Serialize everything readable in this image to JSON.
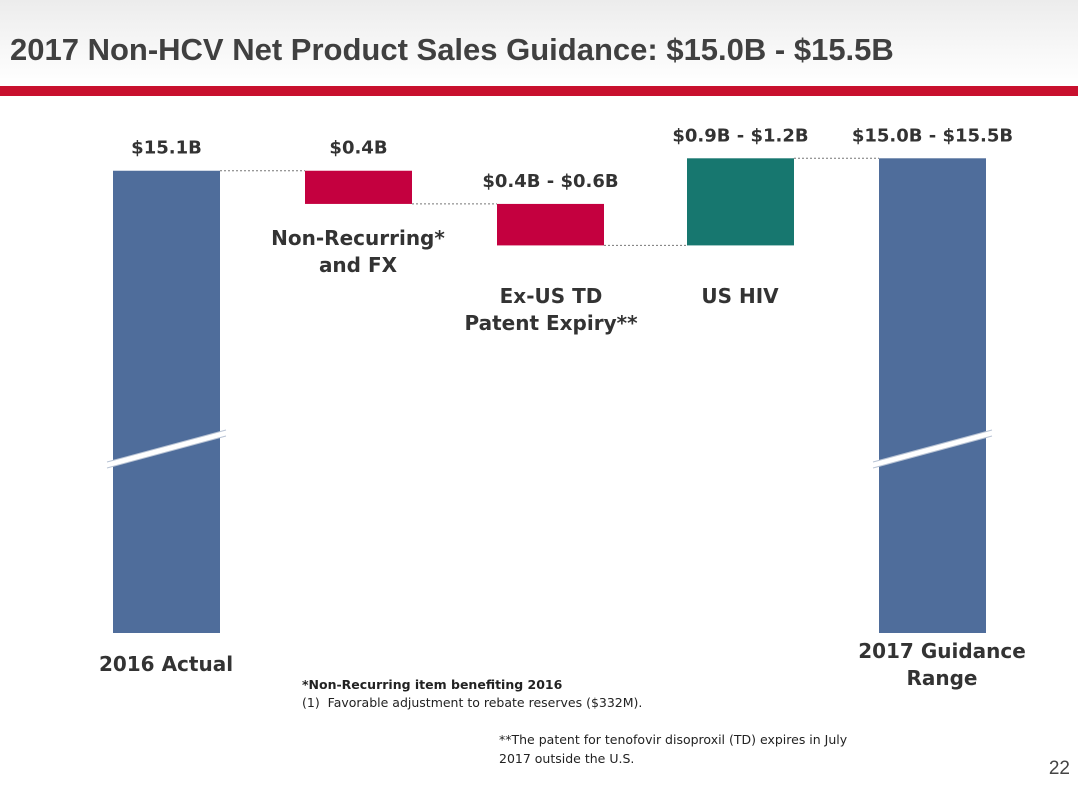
{
  "title": "2017 Non-HCV Net Product Sales Guidance: $15.0B - $15.5B",
  "colors": {
    "title_text": "#404040",
    "accent_rule": "#c8102e",
    "total_bar": "#4f6d9b",
    "decrease_bar": "#c4003f",
    "increase_bar": "#17776f"
  },
  "chart_data": {
    "type": "bar",
    "subtype": "waterfall",
    "title": "",
    "xlabel": "",
    "ylabel": "",
    "axis_break": true,
    "grid": false,
    "legend": "none",
    "categories": [
      {
        "key": "actual_2016",
        "label_lines": [
          "2016 Actual"
        ],
        "value_label": "$15.1B",
        "kind": "total",
        "start": 0,
        "end": 15.1
      },
      {
        "key": "nonrecurring_fx",
        "label_lines": [
          "Non-Recurring*",
          "and FX"
        ],
        "value_label": "$0.4B",
        "kind": "decrease",
        "start": 15.1,
        "end": 14.7
      },
      {
        "key": "exus_td",
        "label_lines": [
          "Ex-US TD",
          "Patent Expiry**"
        ],
        "value_label": "$0.4B - $0.6B",
        "kind": "decrease",
        "start": 14.7,
        "end": 14.2
      },
      {
        "key": "us_hiv",
        "label_lines": [
          "US HIV"
        ],
        "value_label": "$0.9B - $1.2B",
        "kind": "increase",
        "start": 14.2,
        "end": 15.25
      },
      {
        "key": "guidance_2017",
        "label_lines": [
          "2017 Guidance",
          "Range"
        ],
        "value_label": "$15.0B - $15.5B",
        "kind": "total",
        "start": 0,
        "end": 15.25
      }
    ]
  },
  "footnotes": {
    "nonrecurring_heading": "*Non-Recurring item benefiting 2016",
    "item_number": "(1)",
    "item_text": "Favorable adjustment to rebate reserves ($332M).",
    "patent_note": "**The patent for tenofovir disoproxil (TD) expires in July 2017 outside the U.S."
  },
  "page_number": "22"
}
